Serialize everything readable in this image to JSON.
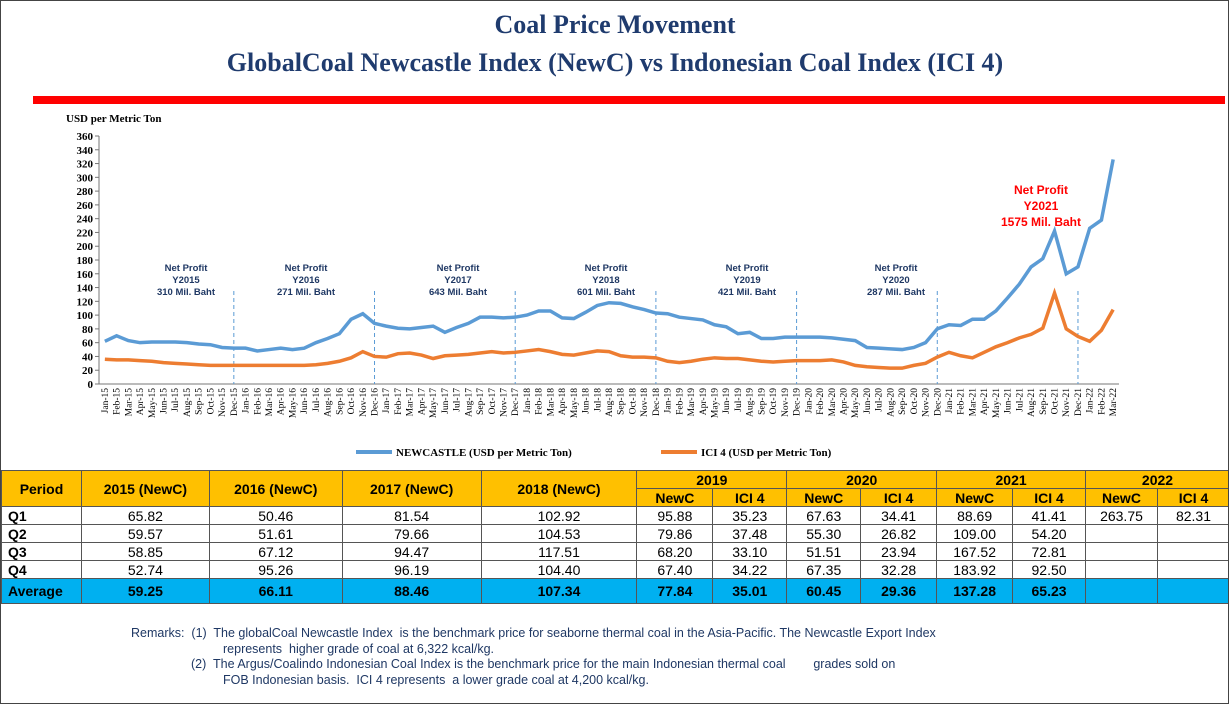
{
  "header": {
    "title": "Coal Price Movement",
    "subtitle": "GlobalCoal Newcastle Index (NewC) vs Indonesian Coal Index (ICI 4)"
  },
  "chart_data": {
    "type": "line",
    "y_label": "USD per Metric Ton",
    "categories": [
      "Jan-15",
      "Feb-15",
      "Mar-15",
      "Apr-15",
      "May-15",
      "Jun-15",
      "Jul-15",
      "Aug-15",
      "Sep-15",
      "Oct-15",
      "Nov-15",
      "Dec-15",
      "Jan-16",
      "Feb-16",
      "Mar-16",
      "Apr-16",
      "May-16",
      "Jun-16",
      "Jul-16",
      "Aug-16",
      "Sep-16",
      "Oct-16",
      "Nov-16",
      "Dec-16",
      "Jan-17",
      "Feb-17",
      "Mar-17",
      "Apr-17",
      "May-17",
      "Jun-17",
      "Jul-17",
      "Aug-17",
      "Sep-17",
      "Oct-17",
      "Nov-17",
      "Dec-17",
      "Jan-18",
      "Feb-18",
      "Mar-18",
      "Apr-18",
      "May-18",
      "Jun-18",
      "Jul-18",
      "Aug-18",
      "Sep-18",
      "Oct-18",
      "Nov-18",
      "Dec-18",
      "Jan-19",
      "Feb-19",
      "Mar-19",
      "Apr-19",
      "May-19",
      "Jun-19",
      "Jul-19",
      "Aug-19",
      "Sep-19",
      "Oct-19",
      "Nov-19",
      "Dec-19",
      "Jan-20",
      "Feb-20",
      "Mar-20",
      "Apr-20",
      "May-20",
      "Jun-20",
      "Jul-20",
      "Aug-20",
      "Sep-20",
      "Oct-20",
      "Nov-20",
      "Dec-20",
      "Jan-21",
      "Feb-21",
      "Mar-21",
      "Apr-21",
      "May-21",
      "Jun-21",
      "Jul-21",
      "Aug-21",
      "Sep-21",
      "Oct-21",
      "Nov-21",
      "Dec-21",
      "Jan-22",
      "Feb-22",
      "Mar-22"
    ],
    "series": [
      {
        "name": "NEWCASTLE (USD per Metric Ton)",
        "color": "#5b9bd5",
        "values": [
          62,
          70,
          63,
          60,
          61,
          61,
          61,
          60,
          58,
          57,
          53,
          52,
          52,
          48,
          50,
          52,
          50,
          52,
          60,
          66,
          73,
          94,
          102,
          88,
          84,
          81,
          80,
          82,
          84,
          75,
          82,
          88,
          97,
          97,
          96,
          97,
          100,
          106,
          106,
          96,
          95,
          104,
          114,
          118,
          117,
          112,
          108,
          103,
          102,
          97,
          95,
          93,
          86,
          83,
          73,
          75,
          66,
          66,
          68,
          68,
          68,
          68,
          67,
          65,
          63,
          53,
          52,
          51,
          50,
          53,
          60,
          80,
          86,
          85,
          94,
          94,
          106,
          125,
          145,
          170,
          182,
          222,
          160,
          170,
          226,
          238,
          326
        ]
      },
      {
        "name": "ICI 4 (USD per Metric Ton)",
        "color": "#ed7d31",
        "values": [
          36,
          35,
          35,
          34,
          33,
          31,
          30,
          29,
          28,
          27,
          27,
          27,
          27,
          27,
          27,
          27,
          27,
          27,
          28,
          30,
          33,
          38,
          47,
          40,
          39,
          44,
          45,
          42,
          37,
          41,
          42,
          43,
          45,
          47,
          45,
          46,
          48,
          50,
          47,
          43,
          42,
          45,
          48,
          47,
          41,
          39,
          39,
          38,
          33,
          31,
          33,
          36,
          38,
          37,
          37,
          35,
          33,
          32,
          33,
          34,
          34,
          34,
          35,
          32,
          27,
          25,
          24,
          23,
          23,
          27,
          30,
          39,
          46,
          41,
          38,
          46,
          54,
          60,
          67,
          72,
          81,
          132,
          80,
          69,
          62,
          78,
          108
        ]
      }
    ],
    "ylim": [
      0,
      360
    ],
    "yticks": [
      0,
      20,
      40,
      60,
      80,
      100,
      120,
      140,
      160,
      180,
      200,
      220,
      240,
      260,
      280,
      300,
      320,
      340,
      360
    ],
    "annotations": [
      {
        "lines": [
          "Net Profit",
          "Y2015",
          "310 Mil. Baht"
        ],
        "color": "#1f3864"
      },
      {
        "lines": [
          "Net Profit",
          "Y2016",
          "271  Mil. Baht"
        ],
        "color": "#1f3864"
      },
      {
        "lines": [
          "Net Profit",
          "Y2017",
          "643  Mil. Baht"
        ],
        "color": "#1f3864"
      },
      {
        "lines": [
          "Net Profit",
          "Y2018",
          "601  Mil. Baht"
        ],
        "color": "#1f3864"
      },
      {
        "lines": [
          "Net Profit",
          "Y2019",
          "421 Mil. Baht"
        ],
        "color": "#1f3864"
      },
      {
        "lines": [
          "Net Profit",
          "Y2020",
          "287  Mil. Baht"
        ],
        "color": "#1f3864"
      },
      {
        "lines": [
          "Net Profit",
          "Y2021",
          "1575 Mil. Baht"
        ],
        "color": "#ff0000"
      }
    ]
  },
  "table": {
    "header_top": [
      "Period",
      "2015 (NewC)",
      "2016 (NewC)",
      "2017 (NewC)",
      "2018 (NewC)",
      "2019",
      "2020",
      "2021",
      "2022"
    ],
    "header_sub": [
      "NewC",
      "ICI 4",
      "NewC",
      "ICI 4",
      "NewC",
      "ICI 4",
      "NewC",
      "ICI 4"
    ],
    "rows": [
      [
        "Q1",
        "65.82",
        "50.46",
        "81.54",
        "102.92",
        "95.88",
        "35.23",
        "67.63",
        "34.41",
        "88.69",
        "41.41",
        "263.75",
        "82.31"
      ],
      [
        "Q2",
        "59.57",
        "51.61",
        "79.66",
        "104.53",
        "79.86",
        "37.48",
        "55.30",
        "26.82",
        "109.00",
        "54.20",
        null,
        null
      ],
      [
        "Q3",
        "58.85",
        "67.12",
        "94.47",
        "117.51",
        "68.20",
        "33.10",
        "51.51",
        "23.94",
        "167.52",
        "72.81",
        null,
        null
      ],
      [
        "Q4",
        "52.74",
        "95.26",
        "96.19",
        "104.40",
        "67.40",
        "34.22",
        "67.35",
        "32.28",
        "183.92",
        "92.50",
        null,
        null
      ],
      [
        "Average",
        "59.25",
        "66.11",
        "88.46",
        "107.34",
        "77.84",
        "35.01",
        "60.45",
        "29.36",
        "137.28",
        "65.23",
        null,
        null
      ]
    ]
  },
  "remarks": [
    "Remarks:  (1)  The globalCoal Newcastle Index  is the benchmark price for seaborne thermal coal in the Asia-Pacific. The Newcastle Export Index",
    "represents  higher grade of coal at 6,322 kcal/kg.",
    "(2)  The Argus/Coalindo Indonesian Coal Index is the benchmark price for the main Indonesian thermal coal        grades sold on",
    "FOB Indonesian basis.  ICI 4 represents  a lower grade coal at 4,200 kcal/kg."
  ]
}
